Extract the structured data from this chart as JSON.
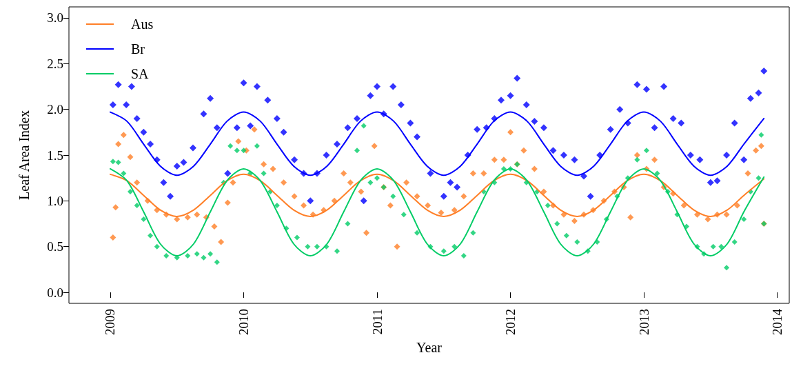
{
  "chart_data": {
    "type": "scatter",
    "xlabel": "Year",
    "ylabel": "Leaf Area Index",
    "xlim": [
      2008.69,
      2014.09
    ],
    "ylim": [
      -0.12,
      3.12
    ],
    "xticks": [
      2009,
      2010,
      2011,
      2012,
      2013,
      2014
    ],
    "yticks": [
      {
        "value": 0,
        "label": "0.0"
      },
      {
        "value": 0.5,
        "label": "0.5"
      },
      {
        "value": 1,
        "label": "1.0"
      },
      {
        "value": 1.5,
        "label": "1.5"
      },
      {
        "value": 2,
        "label": "2.0"
      },
      {
        "value": 2.5,
        "label": "2.5"
      },
      {
        "value": 3,
        "label": "3.0"
      }
    ],
    "grid": false,
    "legend": "top left",
    "marker": "diamond",
    "series": [
      {
        "color": "#0000ff",
        "x": [
          2009.02,
          2009.06,
          2009.12,
          2009.16,
          2009.2,
          2009.25,
          2009.3,
          2009.35,
          2009.4,
          2009.45,
          2009.5,
          2009.55,
          2009.62,
          2009.7,
          2009.75,
          2009.8,
          2009.88,
          2009.95,
          2010.0,
          2010.05,
          2010.1,
          2010.18,
          2010.25,
          2010.3,
          2010.38,
          2010.45,
          2010.5,
          2010.55,
          2010.62,
          2010.7,
          2010.78,
          2010.85,
          2010.9,
          2010.95,
          2011.0,
          2011.05,
          2011.12,
          2011.18,
          2011.25,
          2011.3,
          2011.4,
          2011.5,
          2011.55,
          2011.6,
          2011.68,
          2011.75,
          2011.82,
          2011.88,
          2011.93,
          2012.0,
          2012.05,
          2012.12,
          2012.18,
          2012.25,
          2012.32,
          2012.4,
          2012.48,
          2012.55,
          2012.6,
          2012.67,
          2012.75,
          2012.82,
          2012.88,
          2012.95,
          2013.02,
          2013.08,
          2013.15,
          2013.22,
          2013.28,
          2013.35,
          2013.42,
          2013.5,
          2013.55,
          2013.62,
          2013.68,
          2013.75,
          2013.8,
          2013.86,
          2013.9
        ],
        "values": [
          2.05,
          2.27,
          2.05,
          2.25,
          1.9,
          1.75,
          1.62,
          1.45,
          1.2,
          1.05,
          1.38,
          1.42,
          1.58,
          1.95,
          2.12,
          1.8,
          1.3,
          1.8,
          2.29,
          1.82,
          2.25,
          2.1,
          1.9,
          1.75,
          1.45,
          1.3,
          1.0,
          1.3,
          1.5,
          1.62,
          1.8,
          1.9,
          1.0,
          2.15,
          2.25,
          1.95,
          2.25,
          2.05,
          1.85,
          1.7,
          1.3,
          1.05,
          1.2,
          1.15,
          1.5,
          1.78,
          1.8,
          1.9,
          2.1,
          2.15,
          2.34,
          2.05,
          1.87,
          1.8,
          1.55,
          1.5,
          1.45,
          1.27,
          1.05,
          1.5,
          1.78,
          2.0,
          1.85,
          2.27,
          2.22,
          1.8,
          2.25,
          1.9,
          1.85,
          1.5,
          1.45,
          1.2,
          1.22,
          1.5,
          1.85,
          1.45,
          2.12,
          2.18,
          2.42
        ]
      },
      {
        "color": "#ff7f27",
        "x": [
          2009.02,
          2009.04,
          2009.06,
          2009.1,
          2009.15,
          2009.2,
          2009.28,
          2009.35,
          2009.42,
          2009.5,
          2009.58,
          2009.65,
          2009.72,
          2009.78,
          2009.83,
          2009.88,
          2009.92,
          2009.96,
          2010.02,
          2010.08,
          2010.15,
          2010.22,
          2010.3,
          2010.38,
          2010.45,
          2010.52,
          2010.6,
          2010.68,
          2010.75,
          2010.8,
          2010.88,
          2010.92,
          2010.98,
          2011.05,
          2011.1,
          2011.15,
          2011.22,
          2011.3,
          2011.38,
          2011.48,
          2011.58,
          2011.65,
          2011.72,
          2011.8,
          2011.88,
          2011.95,
          2012.0,
          2012.05,
          2012.1,
          2012.18,
          2012.25,
          2012.32,
          2012.4,
          2012.48,
          2012.55,
          2012.62,
          2012.7,
          2012.78,
          2012.85,
          2012.9,
          2012.95,
          2013.02,
          2013.08,
          2013.15,
          2013.22,
          2013.3,
          2013.4,
          2013.48,
          2013.55,
          2013.62,
          2013.7,
          2013.78,
          2013.84,
          2013.88,
          2013.9
        ],
        "values": [
          0.6,
          0.93,
          1.62,
          1.72,
          1.48,
          1.2,
          1.0,
          0.9,
          0.85,
          0.8,
          0.82,
          0.85,
          0.82,
          0.72,
          0.55,
          0.98,
          1.2,
          1.65,
          1.55,
          1.78,
          1.4,
          1.35,
          1.2,
          1.05,
          0.95,
          0.85,
          0.9,
          1.0,
          1.3,
          1.2,
          1.1,
          0.65,
          1.6,
          1.15,
          0.95,
          0.5,
          1.2,
          1.05,
          0.95,
          0.87,
          0.9,
          1.05,
          1.3,
          1.3,
          1.45,
          1.45,
          1.75,
          1.4,
          1.55,
          1.35,
          1.1,
          0.95,
          0.85,
          0.78,
          0.85,
          0.9,
          1.0,
          1.1,
          1.15,
          0.82,
          1.5,
          1.35,
          1.45,
          1.15,
          1.08,
          0.95,
          0.85,
          0.8,
          0.85,
          0.85,
          0.95,
          1.3,
          1.55,
          1.6,
          0.75
        ]
      },
      {
        "color": "#00cc66",
        "x": [
          2009.02,
          2009.06,
          2009.1,
          2009.15,
          2009.2,
          2009.25,
          2009.3,
          2009.35,
          2009.42,
          2009.5,
          2009.58,
          2009.65,
          2009.7,
          2009.75,
          2009.8,
          2009.85,
          2009.9,
          2009.95,
          2010.0,
          2010.05,
          2010.1,
          2010.15,
          2010.2,
          2010.25,
          2010.32,
          2010.4,
          2010.48,
          2010.55,
          2010.62,
          2010.7,
          2010.78,
          2010.85,
          2010.9,
          2010.95,
          2011.0,
          2011.05,
          2011.12,
          2011.2,
          2011.3,
          2011.4,
          2011.5,
          2011.58,
          2011.65,
          2011.72,
          2011.8,
          2011.88,
          2011.95,
          2012.0,
          2012.05,
          2012.12,
          2012.2,
          2012.28,
          2012.35,
          2012.42,
          2012.5,
          2012.58,
          2012.65,
          2012.72,
          2012.8,
          2012.88,
          2012.95,
          2013.02,
          2013.1,
          2013.18,
          2013.25,
          2013.32,
          2013.4,
          2013.45,
          2013.52,
          2013.58,
          2013.62,
          2013.68,
          2013.75,
          2013.8,
          2013.86,
          2013.88,
          2013.9
        ],
        "values": [
          1.43,
          1.42,
          1.3,
          1.1,
          0.95,
          0.8,
          0.62,
          0.5,
          0.4,
          0.38,
          0.4,
          0.42,
          0.38,
          0.42,
          0.33,
          1.2,
          1.6,
          1.55,
          1.55,
          1.3,
          1.6,
          1.3,
          1.1,
          0.95,
          0.7,
          0.6,
          0.5,
          0.5,
          0.5,
          0.45,
          0.75,
          1.55,
          1.82,
          1.2,
          1.25,
          1.15,
          1.05,
          0.85,
          0.65,
          0.5,
          0.45,
          0.5,
          0.4,
          0.65,
          1.1,
          1.2,
          1.35,
          1.35,
          1.4,
          1.2,
          1.1,
          0.95,
          0.75,
          0.62,
          0.55,
          0.45,
          0.55,
          0.8,
          1.05,
          1.25,
          1.45,
          1.55,
          1.3,
          1.1,
          0.85,
          0.72,
          0.5,
          0.42,
          0.5,
          0.5,
          0.27,
          0.55,
          0.8,
          1.1,
          1.25,
          1.72,
          0.75
        ]
      },
      {
        "type": "line",
        "name": "Aus",
        "color": "#ff7f27",
        "marker": "none",
        "x": [
          2009,
          2009.125,
          2009.25,
          2009.375,
          2009.5,
          2009.625,
          2009.75,
          2009.875,
          2010,
          2010.125,
          2010.25,
          2010.375,
          2010.5,
          2010.625,
          2010.75,
          2010.875,
          2011,
          2011.125,
          2011.25,
          2011.375,
          2011.5,
          2011.625,
          2011.75,
          2011.875,
          2012,
          2012.125,
          2012.25,
          2012.375,
          2012.5,
          2012.625,
          2012.75,
          2012.875,
          2013,
          2013.125,
          2013.25,
          2013.375,
          2013.5,
          2013.625,
          2013.75,
          2013.9
        ],
        "values": [
          1.29,
          1.22,
          1.06,
          0.9,
          0.83,
          0.9,
          1.06,
          1.22,
          1.29,
          1.22,
          1.06,
          0.9,
          0.83,
          0.9,
          1.06,
          1.22,
          1.29,
          1.22,
          1.06,
          0.9,
          0.83,
          0.9,
          1.06,
          1.22,
          1.29,
          1.22,
          1.06,
          0.9,
          0.83,
          0.9,
          1.06,
          1.22,
          1.29,
          1.22,
          1.06,
          0.9,
          0.83,
          0.9,
          1.06,
          1.24
        ]
      },
      {
        "type": "line",
        "name": "Br",
        "color": "#0000ff",
        "marker": "none",
        "x": [
          2009,
          2009.125,
          2009.25,
          2009.375,
          2009.5,
          2009.625,
          2009.75,
          2009.875,
          2010,
          2010.125,
          2010.25,
          2010.375,
          2010.5,
          2010.625,
          2010.75,
          2010.875,
          2011,
          2011.125,
          2011.25,
          2011.375,
          2011.5,
          2011.625,
          2011.75,
          2011.875,
          2012,
          2012.125,
          2012.25,
          2012.375,
          2012.5,
          2012.625,
          2012.75,
          2012.875,
          2013,
          2013.125,
          2013.25,
          2013.375,
          2013.5,
          2013.625,
          2013.75,
          2013.9
        ],
        "values": [
          1.97,
          1.87,
          1.62,
          1.38,
          1.28,
          1.38,
          1.62,
          1.87,
          1.97,
          1.87,
          1.62,
          1.38,
          1.28,
          1.38,
          1.62,
          1.87,
          1.97,
          1.87,
          1.62,
          1.38,
          1.28,
          1.38,
          1.62,
          1.87,
          1.97,
          1.87,
          1.62,
          1.38,
          1.28,
          1.38,
          1.62,
          1.87,
          1.97,
          1.87,
          1.62,
          1.38,
          1.28,
          1.38,
          1.62,
          1.9
        ]
      },
      {
        "type": "line",
        "name": "SA",
        "color": "#00cc66",
        "marker": "none",
        "x": [
          2009,
          2009.125,
          2009.25,
          2009.375,
          2009.5,
          2009.625,
          2009.75,
          2009.875,
          2010,
          2010.125,
          2010.25,
          2010.375,
          2010.5,
          2010.625,
          2010.75,
          2010.875,
          2011,
          2011.125,
          2011.25,
          2011.375,
          2011.5,
          2011.625,
          2011.75,
          2011.875,
          2012,
          2012.125,
          2012.25,
          2012.375,
          2012.5,
          2012.625,
          2012.75,
          2012.875,
          2013,
          2013.125,
          2013.25,
          2013.375,
          2013.5,
          2013.625,
          2013.75,
          2013.9
        ],
        "values": [
          1.35,
          1.22,
          0.88,
          0.53,
          0.4,
          0.53,
          0.88,
          1.22,
          1.35,
          1.22,
          0.88,
          0.53,
          0.4,
          0.53,
          0.88,
          1.22,
          1.35,
          1.22,
          0.88,
          0.53,
          0.4,
          0.53,
          0.88,
          1.22,
          1.35,
          1.22,
          0.88,
          0.53,
          0.4,
          0.53,
          0.88,
          1.22,
          1.35,
          1.22,
          0.88,
          0.53,
          0.4,
          0.53,
          0.88,
          1.26
        ]
      }
    ]
  }
}
